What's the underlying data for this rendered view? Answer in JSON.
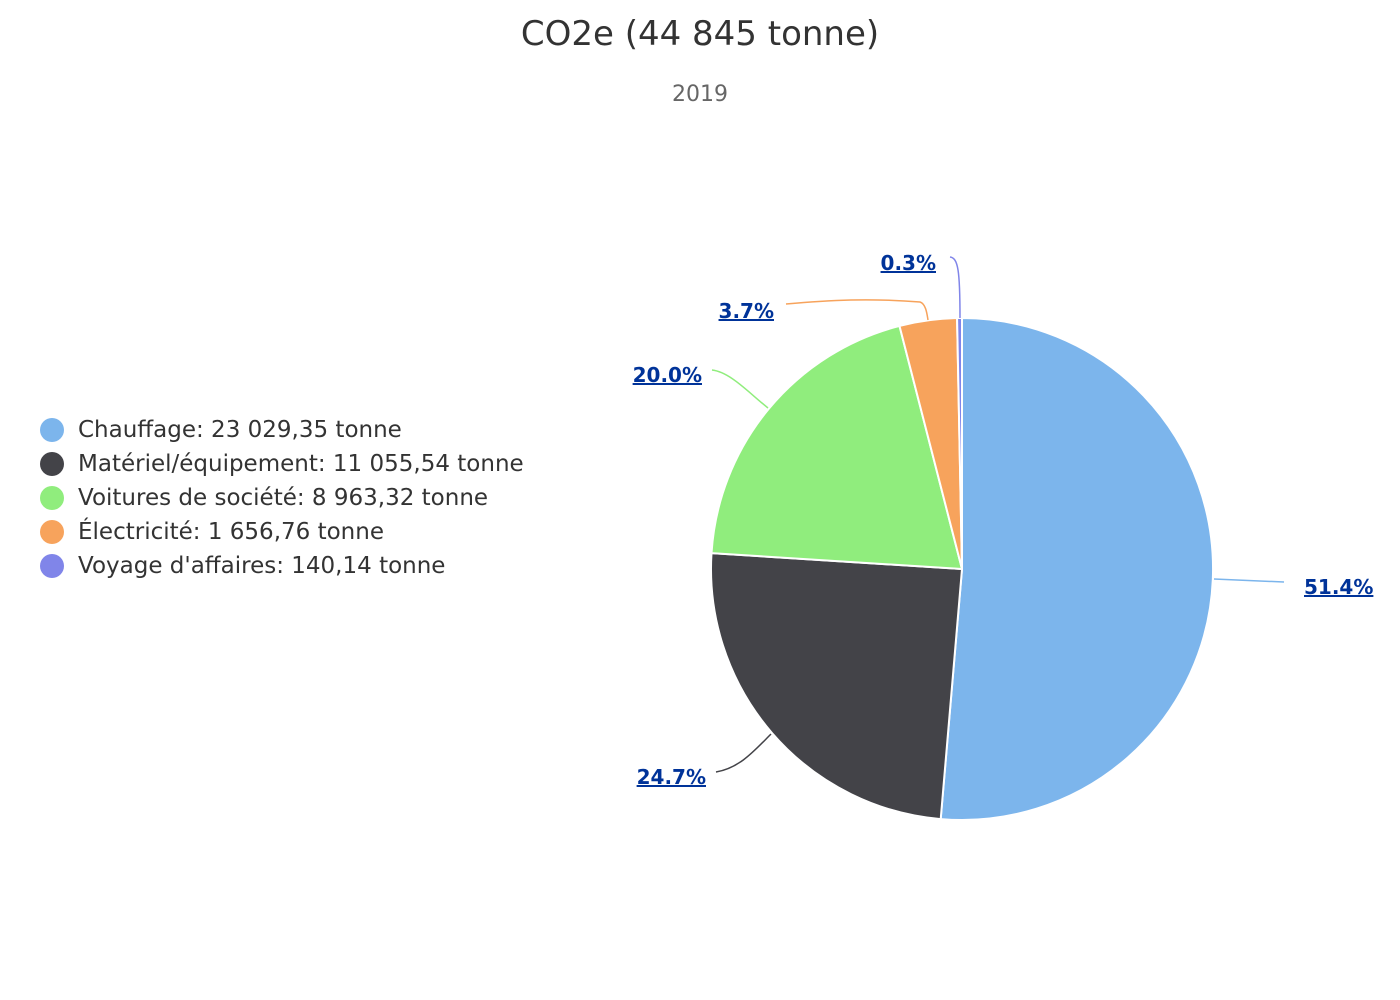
{
  "chart_data": {
    "type": "pie",
    "title": "CO2e (44 845 tonne)",
    "subtitle": "2019",
    "categories": [
      "Chauffage",
      "Matériel/équipement",
      "Voitures de société",
      "Électricité",
      "Voyage d'affaires"
    ],
    "values": [
      23029.35,
      11055.54,
      8963.32,
      1656.76,
      140.14
    ],
    "percent_labels": [
      "51.4%",
      "24.7%",
      "20.0%",
      "3.7%",
      "0.3%"
    ],
    "legend_labels": [
      "Chauffage: 23 029,35 tonne",
      "Matériel/équipement: 11 055,54 tonne",
      "Voitures de société: 8 963,32 tonne",
      "Électricité: 1 656,76 tonne",
      "Voyage d'affaires: 140,14 tonne"
    ],
    "colors": [
      "#7cb5ec",
      "#434348",
      "#90ed7d",
      "#f7a35c",
      "#8085e9"
    ],
    "legend_position": "left"
  }
}
